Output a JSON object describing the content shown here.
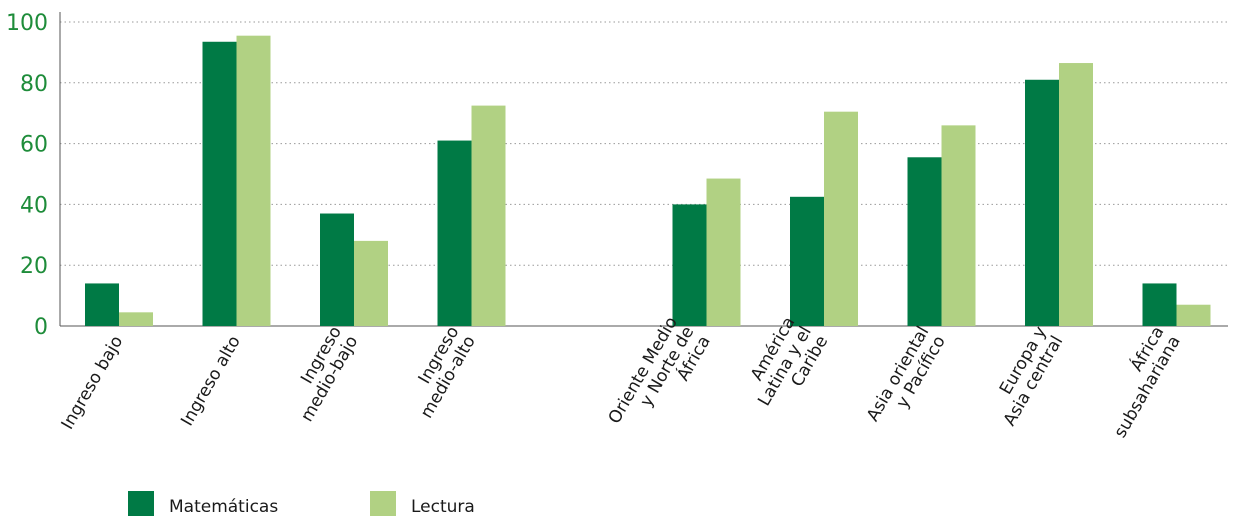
{
  "chart_data": {
    "type": "bar",
    "title": "",
    "xlabel": "",
    "ylabel": "",
    "ylim": [
      0,
      100
    ],
    "yticks": [
      0,
      20,
      40,
      60,
      80,
      100
    ],
    "grid": "horizontal-dotted",
    "legend_position": "bottom-left",
    "categories": [
      {
        "label_lines": [
          "Ingreso bajo"
        ]
      },
      {
        "label_lines": [
          "Ingreso alto"
        ]
      },
      {
        "label_lines": [
          "Ingreso",
          "medio-bajo"
        ]
      },
      {
        "label_lines": [
          "Ingreso",
          "medio-alto"
        ]
      },
      null,
      {
        "label_lines": [
          "Oriente Medio",
          "y Norte de",
          "África"
        ]
      },
      {
        "label_lines": [
          "América",
          "Latina y el",
          "Caribe"
        ]
      },
      {
        "label_lines": [
          "Asia oriental",
          "y Pacífico"
        ]
      },
      {
        "label_lines": [
          "Europa y",
          "Asia central"
        ]
      },
      {
        "label_lines": [
          "África",
          "subsahariana"
        ]
      }
    ],
    "series": [
      {
        "name": "Matemáticas",
        "color": "#007a45",
        "values": [
          14,
          93.5,
          37,
          61,
          null,
          40,
          42.5,
          55.5,
          81,
          14
        ]
      },
      {
        "name": "Lectura",
        "color": "#b1d183",
        "values": [
          4.5,
          95.5,
          28,
          72.5,
          null,
          48.5,
          70.5,
          66,
          86.5,
          7
        ]
      }
    ]
  }
}
